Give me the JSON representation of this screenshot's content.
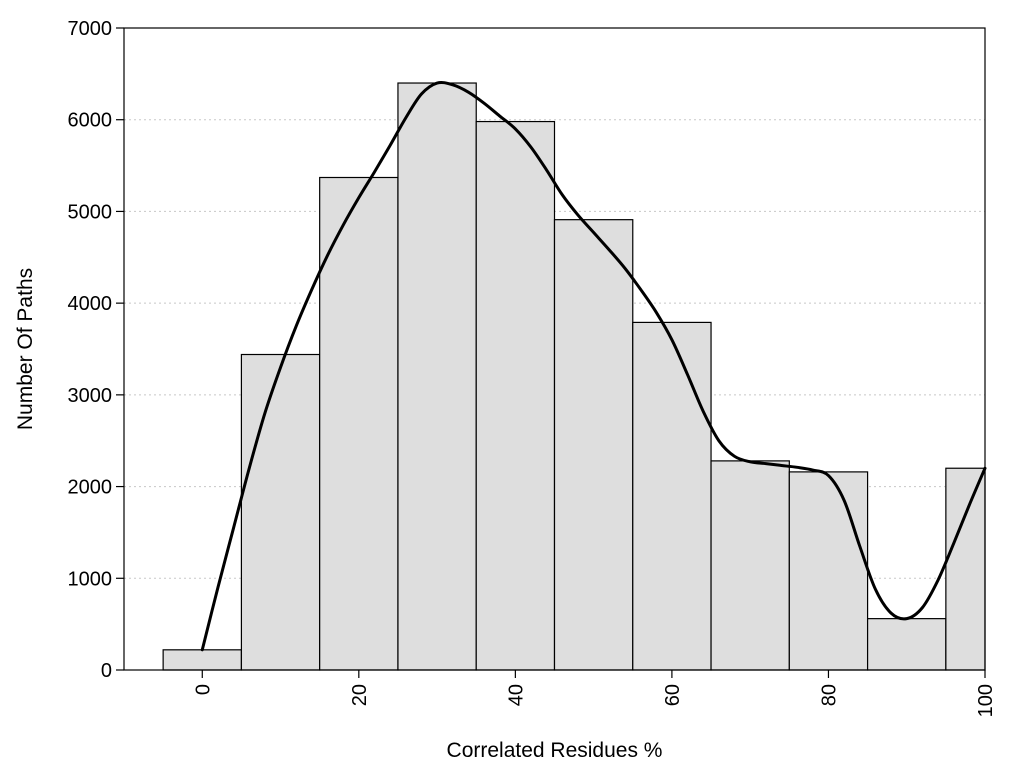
{
  "chart_data": {
    "type": "bar",
    "xlabel": "Correlated Residues %",
    "ylabel": "Number Of Paths",
    "x": [
      0,
      10,
      20,
      30,
      40,
      50,
      60,
      70,
      80,
      90,
      100
    ],
    "values": [
      220,
      3440,
      5370,
      6400,
      5980,
      4910,
      3790,
      2280,
      2160,
      560,
      2200
    ],
    "bin_width": 10,
    "xlim": [
      -10,
      100
    ],
    "ylim": [
      0,
      7000
    ],
    "xticks": [
      0,
      20,
      40,
      60,
      80,
      100
    ],
    "yticks": [
      0,
      1000,
      2000,
      3000,
      4000,
      5000,
      6000,
      7000
    ],
    "x_tick_labels_rotated": true,
    "grid": "horizontal dotted",
    "bar_color": "#dedede",
    "overlay_curve": {
      "type": "smooth-line",
      "color": "#000000",
      "points": [
        [
          0,
          220
        ],
        [
          2,
          900
        ],
        [
          4,
          1550
        ],
        [
          6,
          2200
        ],
        [
          8,
          2800
        ],
        [
          10,
          3300
        ],
        [
          12,
          3750
        ],
        [
          14,
          4150
        ],
        [
          16,
          4520
        ],
        [
          18,
          4850
        ],
        [
          20,
          5150
        ],
        [
          22,
          5430
        ],
        [
          24,
          5720
        ],
        [
          26,
          6020
        ],
        [
          28,
          6280
        ],
        [
          30,
          6400
        ],
        [
          32,
          6380
        ],
        [
          34,
          6300
        ],
        [
          36,
          6180
        ],
        [
          38,
          6040
        ],
        [
          40,
          5900
        ],
        [
          42,
          5700
        ],
        [
          44,
          5450
        ],
        [
          46,
          5180
        ],
        [
          48,
          4960
        ],
        [
          50,
          4770
        ],
        [
          52,
          4580
        ],
        [
          54,
          4380
        ],
        [
          56,
          4150
        ],
        [
          58,
          3900
        ],
        [
          60,
          3600
        ],
        [
          62,
          3220
        ],
        [
          64,
          2820
        ],
        [
          66,
          2500
        ],
        [
          68,
          2330
        ],
        [
          70,
          2270
        ],
        [
          72,
          2250
        ],
        [
          74,
          2230
        ],
        [
          76,
          2210
        ],
        [
          78,
          2180
        ],
        [
          80,
          2120
        ],
        [
          82,
          1850
        ],
        [
          84,
          1350
        ],
        [
          86,
          880
        ],
        [
          88,
          620
        ],
        [
          90,
          560
        ],
        [
          92,
          680
        ],
        [
          94,
          980
        ],
        [
          96,
          1380
        ],
        [
          98,
          1800
        ],
        [
          100,
          2200
        ]
      ]
    }
  }
}
